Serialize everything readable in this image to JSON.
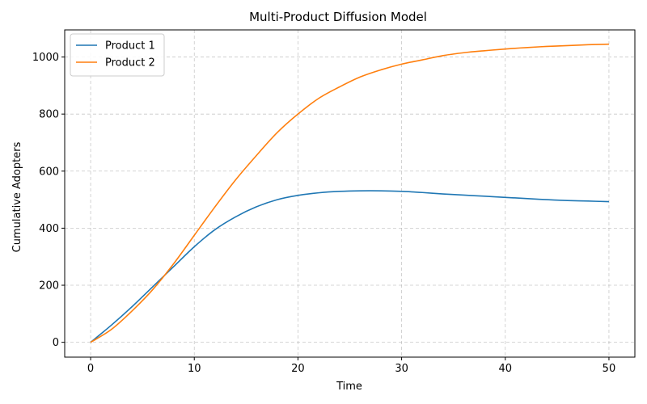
{
  "chart_data": {
    "type": "line",
    "title": "Multi-Product Diffusion Model",
    "xlabel": "Time",
    "ylabel": "Cumulative Adopters",
    "xlim": [
      -2.5,
      52.5
    ],
    "ylim": [
      -52,
      1095
    ],
    "xticks": [
      0,
      10,
      20,
      30,
      40,
      50
    ],
    "yticks": [
      0,
      200,
      400,
      600,
      800,
      1000
    ],
    "grid": true,
    "legend_position": "top-left",
    "x": [
      0,
      2,
      4,
      6,
      8,
      10,
      12,
      14,
      16,
      18,
      20,
      22,
      24,
      26,
      28,
      30,
      32,
      34,
      36,
      38,
      40,
      42,
      44,
      46,
      48,
      50
    ],
    "series": [
      {
        "name": "Product 1",
        "color": "#1f77b4",
        "values": [
          0,
          60,
          125,
          195,
          265,
          335,
          395,
          440,
          475,
          500,
          515,
          524,
          529,
          531,
          531,
          529,
          525,
          520,
          516,
          512,
          508,
          504,
          500,
          497,
          495,
          493
        ]
      },
      {
        "name": "Product 2",
        "color": "#ff7f0e",
        "values": [
          0,
          45,
          110,
          185,
          275,
          375,
          475,
          570,
          655,
          735,
          800,
          855,
          895,
          930,
          955,
          975,
          990,
          1005,
          1015,
          1022,
          1028,
          1033,
          1037,
          1040,
          1043,
          1045
        ]
      }
    ]
  }
}
